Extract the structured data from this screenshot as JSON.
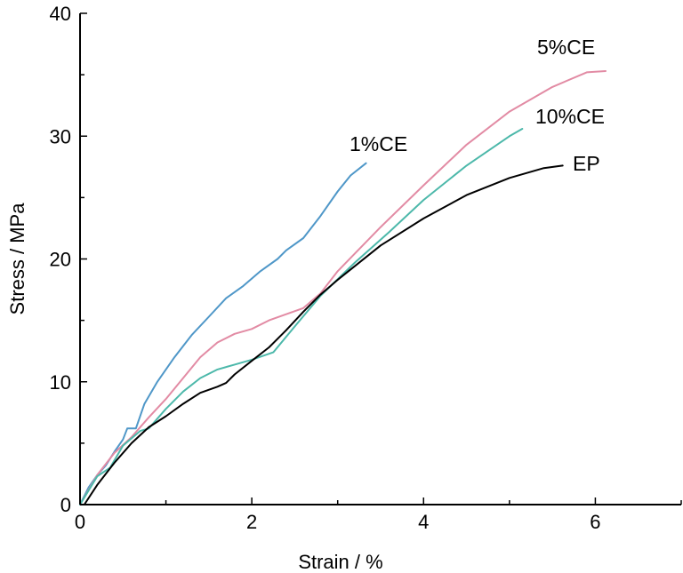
{
  "chart_data": {
    "type": "line",
    "xlabel": "Strain / %",
    "ylabel": "Stress / MPa",
    "xlim": [
      0,
      7
    ],
    "ylim": [
      0,
      40
    ],
    "xticks": [
      0,
      2,
      4,
      6
    ],
    "yticks": [
      0,
      10,
      20,
      30,
      40
    ],
    "grid": false,
    "legend": "inline labels at curve ends",
    "series": [
      {
        "name": "1%CE",
        "color": "#4f97c8",
        "points": [
          [
            0.0,
            0.0
          ],
          [
            0.1,
            1.4
          ],
          [
            0.2,
            2.4
          ],
          [
            0.3,
            3.2
          ],
          [
            0.4,
            4.3
          ],
          [
            0.5,
            5.3
          ],
          [
            0.55,
            6.2
          ],
          [
            0.65,
            6.2
          ],
          [
            0.75,
            8.2
          ],
          [
            0.9,
            10.0
          ],
          [
            1.1,
            12.0
          ],
          [
            1.3,
            13.8
          ],
          [
            1.5,
            15.3
          ],
          [
            1.7,
            16.8
          ],
          [
            1.9,
            17.8
          ],
          [
            2.1,
            19.0
          ],
          [
            2.3,
            20.0
          ],
          [
            2.4,
            20.7
          ],
          [
            2.6,
            21.7
          ],
          [
            2.8,
            23.5
          ],
          [
            3.0,
            25.5
          ],
          [
            3.15,
            26.8
          ],
          [
            3.33,
            27.8
          ]
        ]
      },
      {
        "name": "5%CE",
        "color": "#e28ba4",
        "points": [
          [
            0.0,
            0.0
          ],
          [
            0.2,
            2.4
          ],
          [
            0.4,
            4.2
          ],
          [
            0.6,
            5.5
          ],
          [
            0.8,
            7.1
          ],
          [
            1.0,
            8.6
          ],
          [
            1.2,
            10.3
          ],
          [
            1.4,
            12.0
          ],
          [
            1.6,
            13.2
          ],
          [
            1.8,
            13.9
          ],
          [
            2.0,
            14.3
          ],
          [
            2.2,
            15.0
          ],
          [
            2.4,
            15.5
          ],
          [
            2.6,
            16.0
          ],
          [
            2.8,
            17.2
          ],
          [
            3.0,
            19.0
          ],
          [
            3.5,
            22.6
          ],
          [
            4.0,
            26.0
          ],
          [
            4.5,
            29.3
          ],
          [
            5.0,
            32.0
          ],
          [
            5.5,
            34.0
          ],
          [
            5.9,
            35.2
          ],
          [
            6.12,
            35.3
          ]
        ]
      },
      {
        "name": "10%CE",
        "color": "#4cb8aa",
        "points": [
          [
            0.0,
            0.0
          ],
          [
            0.2,
            2.3
          ],
          [
            0.35,
            3.0
          ],
          [
            0.5,
            4.8
          ],
          [
            0.7,
            6.0
          ],
          [
            0.8,
            6.2
          ],
          [
            1.0,
            7.8
          ],
          [
            1.2,
            9.2
          ],
          [
            1.4,
            10.3
          ],
          [
            1.6,
            11.0
          ],
          [
            1.8,
            11.4
          ],
          [
            2.0,
            11.8
          ],
          [
            2.25,
            12.4
          ],
          [
            2.5,
            14.5
          ],
          [
            2.8,
            17.0
          ],
          [
            3.2,
            19.7
          ],
          [
            3.6,
            22.2
          ],
          [
            4.0,
            24.8
          ],
          [
            4.5,
            27.6
          ],
          [
            5.0,
            30.0
          ],
          [
            5.15,
            30.6
          ]
        ]
      },
      {
        "name": "EP",
        "color": "#000000",
        "points": [
          [
            0.05,
            0.0
          ],
          [
            0.2,
            1.6
          ],
          [
            0.4,
            3.4
          ],
          [
            0.6,
            5.0
          ],
          [
            0.8,
            6.3
          ],
          [
            1.0,
            7.2
          ],
          [
            1.2,
            8.2
          ],
          [
            1.4,
            9.1
          ],
          [
            1.6,
            9.6
          ],
          [
            1.7,
            9.9
          ],
          [
            1.8,
            10.6
          ],
          [
            2.0,
            11.7
          ],
          [
            2.2,
            12.8
          ],
          [
            2.4,
            14.2
          ],
          [
            2.6,
            15.7
          ],
          [
            2.8,
            17.1
          ],
          [
            3.0,
            18.3
          ],
          [
            3.5,
            21.1
          ],
          [
            4.0,
            23.3
          ],
          [
            4.5,
            25.2
          ],
          [
            5.0,
            26.6
          ],
          [
            5.4,
            27.4
          ],
          [
            5.62,
            27.6
          ]
        ]
      }
    ]
  }
}
